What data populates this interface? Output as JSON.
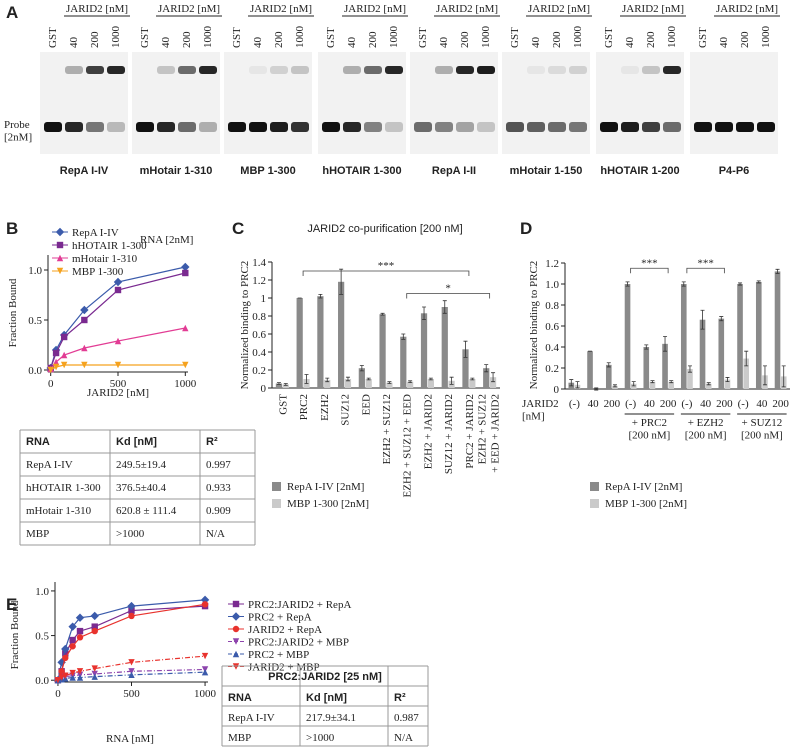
{
  "panel_a": {
    "letter": "A",
    "header": "JARID2 [nM]",
    "lanes": [
      "GST",
      "40",
      "200",
      "1000"
    ],
    "probe_label": "Probe\n[2nM]",
    "gels": [
      "RepA I-IV",
      "mHotair 1-310",
      "MBP 1-300",
      "hHOTAIR 1-300",
      "RepA I-II",
      "mHotair 1-150",
      "hHOTAIR 1-200",
      "P4-P6"
    ]
  },
  "chart_data": [
    {
      "type": "line",
      "panel": "B",
      "x_label": "JARID2 [nM]",
      "y_label": "Fraction Bound",
      "legend_title": "RNA [2nM]",
      "x": [
        0,
        40,
        100,
        250,
        500,
        1000
      ],
      "xlim": [
        -20,
        1020
      ],
      "xticks": [
        0,
        500,
        1000
      ],
      "ylim": [
        -0.02,
        1.15
      ],
      "yticks": [
        {
          "value": 0,
          "label": "0.0"
        },
        {
          "value": 0.5,
          "label": "0.5"
        },
        {
          "value": 1,
          "label": "1.0"
        }
      ],
      "series": [
        {
          "name": "RepA I-IV",
          "color": "#3b5bab",
          "marker": "diamond",
          "values": [
            0.02,
            0.2,
            0.35,
            0.6,
            0.88,
            1.03
          ]
        },
        {
          "name": "hHOTAIR 1-300",
          "color": "#7a2a90",
          "marker": "square",
          "values": [
            0.02,
            0.17,
            0.33,
            0.5,
            0.8,
            0.97
          ]
        },
        {
          "name": "mHotair 1-310",
          "color": "#e23c94",
          "marker": "triangle",
          "values": [
            0.01,
            0.08,
            0.15,
            0.22,
            0.29,
            0.42
          ]
        },
        {
          "name": "MBP 1-300",
          "color": "#f5a21e",
          "marker": "triangle-down",
          "values": [
            0,
            0.03,
            0.05,
            0.05,
            0.05,
            0.05
          ]
        }
      ]
    },
    {
      "type": "bar",
      "panel": "C",
      "title": "JARID2 co-purification [200 nM]",
      "y_label": "Normalized binding to PRC2",
      "categories": [
        "GST",
        "PRC2",
        "EZH2",
        "SUZ12",
        "EED",
        "EZH2 + SUZ12",
        "EZH2 + SUZ12 + EED",
        "EZH2 + JARID2",
        "SUZ12 + JARID2",
        "PRC2 + JARID2",
        "EZH2 + SUZ12\n+ EED + JARID2"
      ],
      "ylim": [
        0,
        1.4
      ],
      "yticks": [
        0,
        0.2,
        0.4,
        0.6,
        0.8,
        1,
        1.2,
        1.4
      ],
      "series": [
        {
          "name": "RepA I-IV [2nM]",
          "color": "#8a8a8a",
          "values": [
            0.05,
            1.0,
            1.02,
            1.18,
            0.22,
            0.82,
            0.57,
            0.83,
            0.9,
            0.43,
            0.22
          ],
          "errors": [
            0.01,
            0,
            0.02,
            0.14,
            0.03,
            0.01,
            0.03,
            0.07,
            0.07,
            0.09,
            0.04
          ]
        },
        {
          "name": "MBP 1-300 [2nM]",
          "color": "#cacaca",
          "values": [
            0.04,
            0.1,
            0.09,
            0.1,
            0.1,
            0.06,
            0.07,
            0.1,
            0.08,
            0.1,
            0.12
          ],
          "errors": [
            0.01,
            0.05,
            0.02,
            0.02,
            0.01,
            0.01,
            0.01,
            0.01,
            0.04,
            0.01,
            0.05
          ]
        }
      ],
      "brackets": [
        {
          "label": "***",
          "from": 1,
          "to": 9,
          "y": 1.3
        },
        {
          "label": "*",
          "from": 6,
          "to": 10,
          "y": 1.05
        }
      ]
    },
    {
      "type": "bar",
      "panel": "D",
      "y_label": "Normalized binding to PRC2",
      "x_label": "JARID2\n[nM]",
      "categories": [
        "(-)",
        "40",
        "200",
        "(-)",
        "40",
        "200",
        "(-)",
        "40",
        "200",
        "(-)",
        "40",
        "200"
      ],
      "ylim": [
        0,
        1.2
      ],
      "yticks": [
        0,
        0.2,
        0.4,
        0.6,
        0.8,
        {
          "value": 1,
          "label": "1.0"
        },
        1.2
      ],
      "series": [
        {
          "name": "RepA I-IV [2nM]",
          "color": "#8a8a8a",
          "values": [
            0.06,
            0.36,
            0.23,
            1.0,
            0.4,
            0.43,
            1.0,
            0.66,
            0.67,
            1.0,
            1.02,
            1.12
          ],
          "errors": [
            0.03,
            0,
            0.02,
            0.02,
            0.02,
            0.07,
            0.02,
            0.09,
            0.02,
            0.01,
            0.01,
            0.02
          ]
        },
        {
          "name": "MBP 1-300 [2nM]",
          "color": "#cacaca",
          "values": [
            0.04,
            0,
            0.03,
            0.05,
            0.07,
            0.07,
            0.19,
            0.05,
            0.09,
            0.29,
            0.13,
            0.12
          ],
          "errors": [
            0.03,
            0.01,
            0.01,
            0.02,
            0.01,
            0.01,
            0.03,
            0.01,
            0.02,
            0.07,
            0.09,
            0.1
          ]
        }
      ],
      "brackets": [
        {
          "label": "***",
          "from": 3,
          "to": 5,
          "y": 1.15
        },
        {
          "label": "***",
          "from": 6,
          "to": 8,
          "y": 1.15
        }
      ],
      "groups": [
        {
          "label": "+ PRC2\n[200 nM]",
          "from": 3,
          "to": 5
        },
        {
          "label": "+ EZH2\n[200 nM]",
          "from": 6,
          "to": 8
        },
        {
          "label": "+ SUZ12\n[200 nM]",
          "from": 9,
          "to": 11
        }
      ]
    },
    {
      "type": "line",
      "panel": "E",
      "x_label": "RNA [nM]",
      "y_label": "Fraction Bound",
      "x": [
        0,
        25,
        50,
        100,
        150,
        250,
        500,
        1000
      ],
      "xlim": [
        -20,
        1020
      ],
      "xticks": [
        0,
        500,
        1000
      ],
      "ylim": [
        -0.02,
        1.1
      ],
      "yticks": [
        {
          "value": 0,
          "label": "0.0"
        },
        {
          "value": 0.5,
          "label": "0.5"
        },
        {
          "value": 1,
          "label": "1.0"
        }
      ],
      "series": [
        {
          "name": "PRC2:JARID2 + RepA",
          "color": "#7a2a90",
          "marker": "square",
          "values": [
            0,
            0.1,
            0.3,
            0.45,
            0.55,
            0.6,
            0.78,
            0.83
          ]
        },
        {
          "name": "PRC2 + RepA",
          "color": "#3b5bab",
          "marker": "diamond",
          "values": [
            0,
            0.2,
            0.35,
            0.6,
            0.7,
            0.72,
            0.83,
            0.9
          ]
        },
        {
          "name": "JARID2 + RepA",
          "color": "#e8322d",
          "marker": "circle",
          "values": [
            0,
            0.1,
            0.25,
            0.38,
            0.48,
            0.55,
            0.72,
            0.85
          ]
        },
        {
          "name": "PRC2:JARID2 + MBP",
          "color": "#8e44ad",
          "marker": "triangle-down",
          "dashed": true,
          "values": [
            0,
            0.02,
            0.04,
            0.05,
            0.06,
            0.07,
            0.1,
            0.12
          ]
        },
        {
          "name": "PRC2 + MBP",
          "color": "#3b5bab",
          "marker": "triangle",
          "dashed": true,
          "values": [
            0,
            0.01,
            0.02,
            0.03,
            0.03,
            0.04,
            0.06,
            0.09
          ]
        },
        {
          "name": "JARID2 + MBP",
          "color": "#e8322d",
          "marker": "triangle-down",
          "dashed": true,
          "values": [
            0,
            0.03,
            0.05,
            0.08,
            0.1,
            0.13,
            0.2,
            0.27
          ]
        }
      ]
    }
  ],
  "table_b": {
    "headers": [
      "RNA",
      "Kd [nM]",
      "R²"
    ],
    "rows": [
      [
        "RepA I-IV",
        "249.5±19.4",
        "0.997"
      ],
      [
        "hHOTAIR 1-300",
        "376.5±40.4",
        "0.933"
      ],
      [
        "mHotair 1-310",
        "620.8 ± 111.4",
        "0.909"
      ],
      [
        "MBP",
        ">1000",
        "N/A"
      ]
    ]
  },
  "table_e": {
    "title": "PRC2:JARID2 [25 nM]",
    "headers": [
      "RNA",
      "Kd [nM]",
      "R²"
    ],
    "rows": [
      [
        "RepA I-IV",
        "217.9±34.1",
        "0.987"
      ],
      [
        "MBP",
        ">1000",
        "N/A"
      ]
    ]
  }
}
